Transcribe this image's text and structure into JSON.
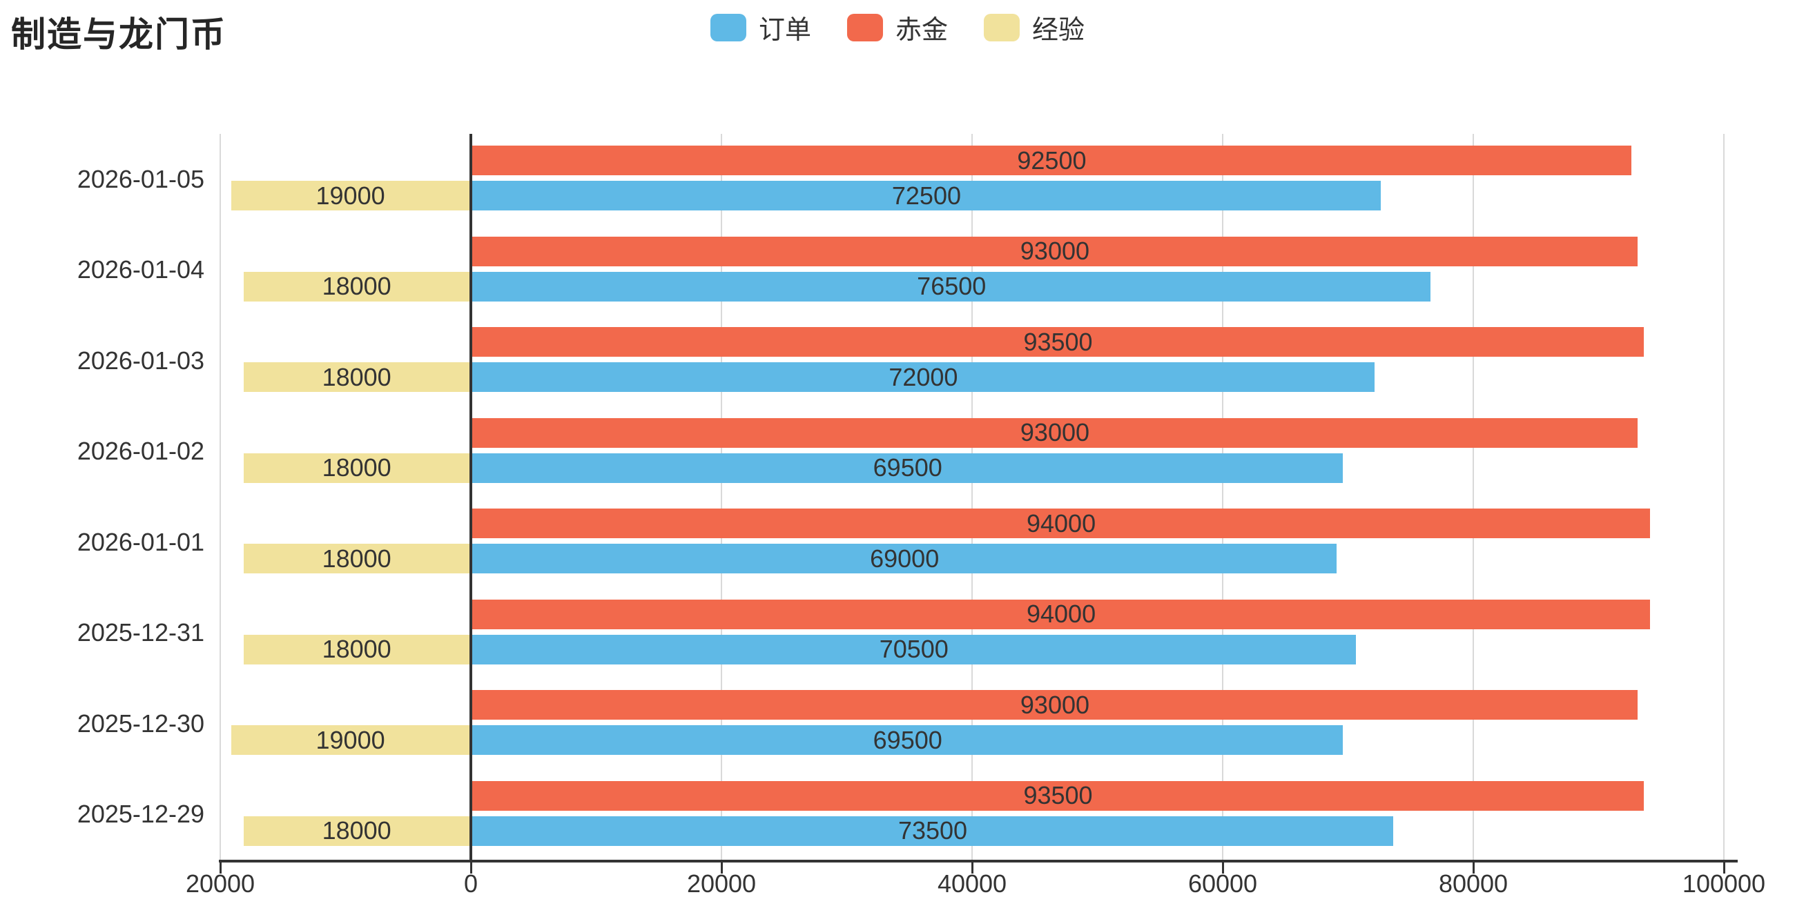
{
  "title": "制造与龙门币",
  "colors": {
    "orders": "#5FB9E6",
    "gold": "#F2694C",
    "exp": "#F1E29C",
    "text": "#333333",
    "grid": "#D9D9D9",
    "axis": "#333333"
  },
  "chart_data": {
    "type": "bar",
    "orientation": "horizontal",
    "title": "制造与龙门币",
    "legend_position": "top-center",
    "grid": true,
    "categories": [
      "2026-01-05",
      "2026-01-04",
      "2026-01-03",
      "2026-01-02",
      "2026-01-01",
      "2025-12-31",
      "2025-12-30",
      "2025-12-29"
    ],
    "series": [
      {
        "key": "orders",
        "name": "订单",
        "color": "#5FB9E6",
        "side": "positive",
        "row": "bottom",
        "values": [
          72500,
          76500,
          72000,
          69500,
          69000,
          70500,
          69500,
          73500
        ]
      },
      {
        "key": "gold",
        "name": "赤金",
        "color": "#F2694C",
        "side": "positive",
        "row": "top",
        "values": [
          92500,
          93000,
          93500,
          93000,
          94000,
          94000,
          93000,
          93500
        ]
      },
      {
        "key": "exp",
        "name": "经验",
        "color": "#F1E29C",
        "side": "negative",
        "row": "bottom",
        "values": [
          19000,
          18000,
          18000,
          18000,
          18000,
          18000,
          19000,
          18000
        ]
      }
    ],
    "xlim": [
      -20000,
      100000
    ],
    "x_ticks": [
      -20000,
      0,
      20000,
      40000,
      60000,
      80000,
      100000
    ],
    "x_tick_labels": [
      "20000",
      "0",
      "20000",
      "40000",
      "60000",
      "80000",
      "100000"
    ],
    "value_labels": "inside-center"
  }
}
